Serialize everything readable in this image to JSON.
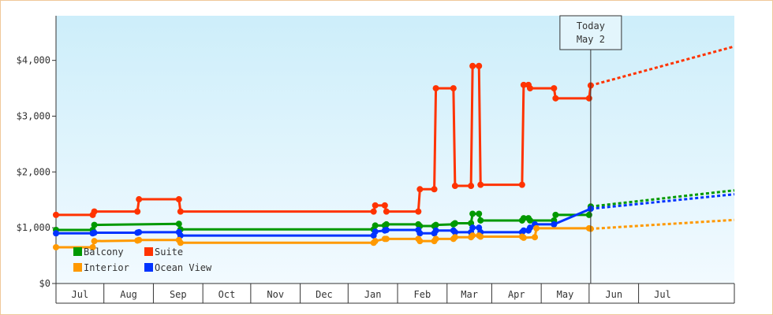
{
  "chart_data": {
    "type": "line",
    "title": "",
    "xlabel": "",
    "ylabel": "",
    "ylim": [
      0,
      4800
    ],
    "yticks": [
      0,
      1000,
      2000,
      3000,
      4000
    ],
    "ytick_labels": [
      "$0",
      "$1,000",
      "$2,000",
      "$3,000",
      "$4,000"
    ],
    "xlim": [
      "2017-06-01",
      "2018-07-31"
    ],
    "month_labels": [
      "Jul",
      "Aug",
      "Sep",
      "Oct",
      "Nov",
      "Dec",
      "Jan",
      "Feb",
      "Mar",
      "Apr",
      "May",
      "Jun",
      "Jul"
    ],
    "grid": false,
    "legend_position": "bottom-left",
    "today_marker": {
      "date": "2018-05-02",
      "label_line1": "Today",
      "label_line2": "May 2"
    },
    "series": [
      {
        "name": "Suite",
        "color": "#ff3300",
        "points": [
          [
            "2017-06-01",
            1230
          ],
          [
            "2017-06-24",
            1230
          ],
          [
            "2017-06-25",
            1290
          ],
          [
            "2017-07-22",
            1290
          ],
          [
            "2017-07-23",
            1510
          ],
          [
            "2017-08-17",
            1510
          ],
          [
            "2017-08-18",
            1290
          ],
          [
            "2017-12-17",
            1290
          ],
          [
            "2017-12-18",
            1400
          ],
          [
            "2017-12-24",
            1400
          ],
          [
            "2017-12-25",
            1290
          ],
          [
            "2018-01-14",
            1290
          ],
          [
            "2018-01-15",
            1690
          ],
          [
            "2018-01-24",
            1690
          ],
          [
            "2018-01-25",
            3500
          ],
          [
            "2018-02-05",
            3500
          ],
          [
            "2018-02-06",
            1750
          ],
          [
            "2018-02-16",
            1750
          ],
          [
            "2018-02-17",
            3900
          ],
          [
            "2018-02-21",
            3900
          ],
          [
            "2018-02-22",
            1770
          ],
          [
            "2018-03-20",
            1770
          ],
          [
            "2018-03-21",
            3560
          ],
          [
            "2018-03-24",
            3560
          ],
          [
            "2018-03-25",
            3500
          ],
          [
            "2018-04-09",
            3500
          ],
          [
            "2018-04-10",
            3320
          ],
          [
            "2018-05-01",
            3320
          ],
          [
            "2018-05-02",
            3550
          ]
        ],
        "forecast": [
          [
            "2018-05-02",
            3550
          ],
          [
            "2018-07-31",
            4250
          ]
        ]
      },
      {
        "name": "Balcony",
        "color": "#009900",
        "points": [
          [
            "2017-06-01",
            960
          ],
          [
            "2017-06-24",
            960
          ],
          [
            "2017-06-25",
            1050
          ],
          [
            "2017-08-17",
            1070
          ],
          [
            "2017-08-18",
            970
          ],
          [
            "2017-12-17",
            970
          ],
          [
            "2017-12-18",
            1040
          ],
          [
            "2017-12-24",
            1040
          ],
          [
            "2017-12-25",
            1060
          ],
          [
            "2018-01-14",
            1060
          ],
          [
            "2018-01-15",
            1030
          ],
          [
            "2018-01-24",
            1030
          ],
          [
            "2018-01-25",
            1050
          ],
          [
            "2018-02-05",
            1060
          ],
          [
            "2018-02-06",
            1080
          ],
          [
            "2018-02-16",
            1080
          ],
          [
            "2018-02-17",
            1250
          ],
          [
            "2018-02-21",
            1250
          ],
          [
            "2018-02-22",
            1130
          ],
          [
            "2018-03-20",
            1130
          ],
          [
            "2018-03-21",
            1170
          ],
          [
            "2018-03-24",
            1170
          ],
          [
            "2018-03-25",
            1130
          ],
          [
            "2018-04-09",
            1130
          ],
          [
            "2018-04-10",
            1230
          ],
          [
            "2018-05-01",
            1230
          ],
          [
            "2018-05-02",
            1380
          ]
        ],
        "forecast": [
          [
            "2018-05-02",
            1380
          ],
          [
            "2018-07-31",
            1670
          ]
        ]
      },
      {
        "name": "Ocean View",
        "color": "#0033ff",
        "points": [
          [
            "2017-06-01",
            900
          ],
          [
            "2017-06-24",
            900
          ],
          [
            "2017-06-25",
            910
          ],
          [
            "2017-07-22",
            910
          ],
          [
            "2017-07-23",
            920
          ],
          [
            "2017-08-17",
            920
          ],
          [
            "2017-08-18",
            860
          ],
          [
            "2017-12-17",
            860
          ],
          [
            "2017-12-18",
            930
          ],
          [
            "2017-12-24",
            950
          ],
          [
            "2017-12-25",
            960
          ],
          [
            "2018-01-14",
            960
          ],
          [
            "2018-01-15",
            900
          ],
          [
            "2018-01-24",
            900
          ],
          [
            "2018-01-25",
            950
          ],
          [
            "2018-02-05",
            950
          ],
          [
            "2018-02-06",
            920
          ],
          [
            "2018-02-16",
            920
          ],
          [
            "2018-02-17",
            1000
          ],
          [
            "2018-02-21",
            1000
          ],
          [
            "2018-02-22",
            920
          ],
          [
            "2018-03-20",
            920
          ],
          [
            "2018-03-21",
            950
          ],
          [
            "2018-03-24",
            950
          ],
          [
            "2018-03-25",
            1000
          ],
          [
            "2018-03-28",
            1060
          ],
          [
            "2018-04-09",
            1060
          ],
          [
            "2018-05-02",
            1340
          ]
        ],
        "forecast": [
          [
            "2018-05-02",
            1340
          ],
          [
            "2018-07-31",
            1600
          ]
        ]
      },
      {
        "name": "Interior",
        "color": "#ff9900",
        "points": [
          [
            "2017-06-01",
            650
          ],
          [
            "2017-06-24",
            650
          ],
          [
            "2017-06-25",
            760
          ],
          [
            "2017-07-22",
            770
          ],
          [
            "2017-07-23",
            780
          ],
          [
            "2017-08-17",
            780
          ],
          [
            "2017-08-18",
            730
          ],
          [
            "2017-12-17",
            730
          ],
          [
            "2017-12-18",
            760
          ],
          [
            "2017-12-24",
            800
          ],
          [
            "2017-12-25",
            800
          ],
          [
            "2018-01-14",
            800
          ],
          [
            "2018-01-15",
            760
          ],
          [
            "2018-01-24",
            760
          ],
          [
            "2018-01-25",
            800
          ],
          [
            "2018-02-05",
            800
          ],
          [
            "2018-02-06",
            830
          ],
          [
            "2018-02-16",
            830
          ],
          [
            "2018-02-17",
            860
          ],
          [
            "2018-02-21",
            860
          ],
          [
            "2018-02-22",
            840
          ],
          [
            "2018-03-20",
            840
          ],
          [
            "2018-03-21",
            820
          ],
          [
            "2018-03-28",
            830
          ],
          [
            "2018-03-29",
            990
          ],
          [
            "2018-05-01",
            990
          ],
          [
            "2018-05-02",
            980
          ]
        ],
        "forecast": [
          [
            "2018-05-02",
            980
          ],
          [
            "2018-07-31",
            1140
          ]
        ]
      }
    ],
    "legend": [
      {
        "name": "Balcony",
        "color": "#009900"
      },
      {
        "name": "Suite",
        "color": "#ff3300"
      },
      {
        "name": "Interior",
        "color": "#ff9900"
      },
      {
        "name": "Ocean View",
        "color": "#0033ff"
      }
    ]
  }
}
